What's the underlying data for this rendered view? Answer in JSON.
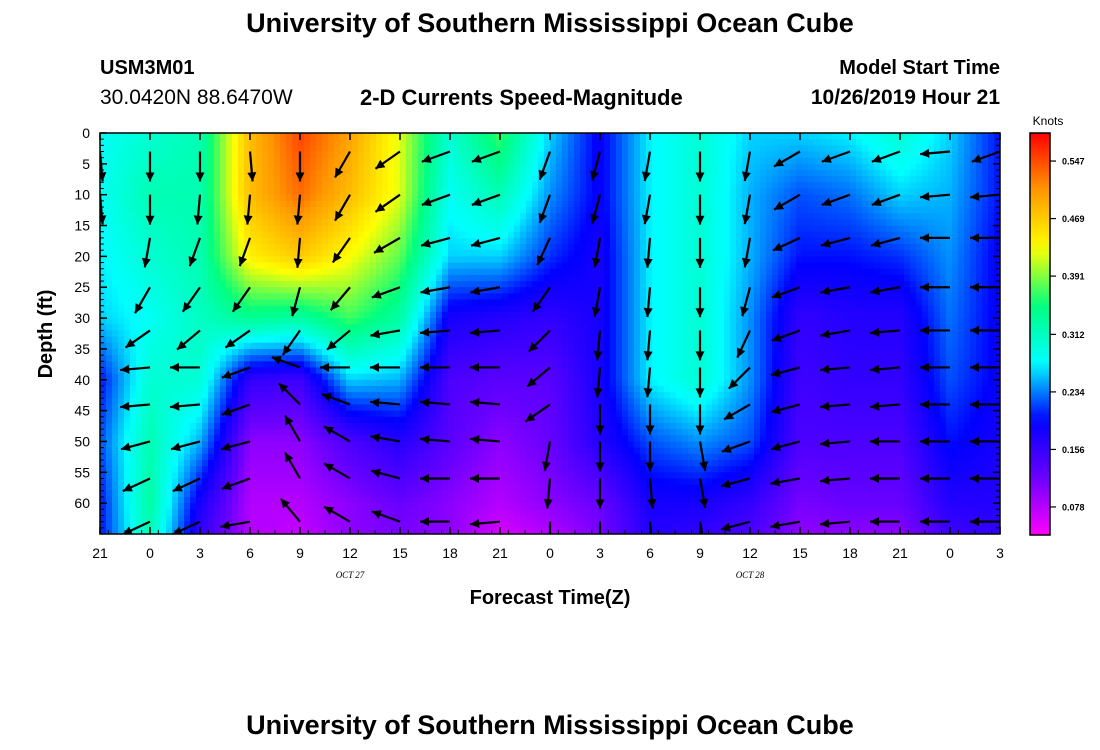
{
  "header": {
    "title": "University of Southern Mississippi Ocean Cube",
    "station_id": "USM3M01",
    "location": "30.0420N 88.6470W",
    "plot_title": "2-D Currents Speed-Magnitude",
    "model_start_label": "Model Start Time",
    "model_start_value": "10/26/2019 Hour 21"
  },
  "footer": {
    "title": "University of Southern Mississippi Ocean Cube"
  },
  "colors": {
    "colormap": [
      "#ff00ff",
      "#6a00ff",
      "#0000ff",
      "#00ffff",
      "#00ff7f",
      "#ffff00",
      "#ff9900",
      "#ff0000"
    ]
  },
  "chart_data": {
    "type": "heatmap",
    "xlabel": "Forecast Time(Z)",
    "ylabel": "Depth (ft)",
    "xlim": [
      0,
      54
    ],
    "ylim": [
      0,
      65
    ],
    "x_ticks": [
      0,
      3,
      6,
      9,
      12,
      15,
      18,
      21,
      24,
      27,
      30,
      33,
      36,
      39,
      42,
      45,
      48,
      51,
      54
    ],
    "x_tick_labels": [
      "21",
      "0",
      "3",
      "6",
      "9",
      "12",
      "15",
      "18",
      "21",
      "0",
      "3",
      "6",
      "9",
      "12",
      "15",
      "18",
      "21",
      "0",
      "3"
    ],
    "date_labels": [
      {
        "x": 15,
        "text": "OCT 27"
      },
      {
        "x": 39,
        "text": "OCT 28"
      }
    ],
    "y_ticks": [
      0,
      5,
      10,
      15,
      20,
      25,
      30,
      35,
      40,
      45,
      50,
      55,
      60
    ],
    "y_tick_labels": [
      "0",
      "5",
      "10",
      "15",
      "20",
      "25",
      "30",
      "35",
      "40",
      "45",
      "50",
      "55",
      "60"
    ],
    "colorbar": {
      "label": "Knots",
      "ticks": [
        0.547,
        0.469,
        0.391,
        0.312,
        0.234,
        0.156,
        0.078
      ],
      "tick_labels": [
        "0.547",
        "0.469",
        "0.391",
        "0.312",
        "0.234",
        "0.156",
        "0.078"
      ],
      "range": [
        0.04,
        0.585
      ]
    },
    "speed_columns_x": [
      0,
      3,
      6,
      9,
      12,
      15,
      18,
      21,
      24,
      27,
      30,
      33,
      36,
      39,
      42,
      45,
      48,
      51,
      54
    ],
    "speed_rows_depth": [
      0,
      10,
      20,
      30,
      40,
      50,
      60,
      65
    ],
    "speed": [
      [
        0.28,
        0.28,
        0.27,
        0.26,
        0.2,
        0.22,
        0.2,
        0.2
      ],
      [
        0.3,
        0.32,
        0.3,
        0.28,
        0.3,
        0.32,
        0.33,
        0.32
      ],
      [
        0.32,
        0.32,
        0.32,
        0.31,
        0.3,
        0.25,
        0.18,
        0.16
      ],
      [
        0.48,
        0.48,
        0.44,
        0.34,
        0.16,
        0.1,
        0.08,
        0.08
      ],
      [
        0.55,
        0.53,
        0.47,
        0.33,
        0.15,
        0.1,
        0.08,
        0.07
      ],
      [
        0.5,
        0.48,
        0.43,
        0.37,
        0.26,
        0.14,
        0.1,
        0.1
      ],
      [
        0.42,
        0.42,
        0.38,
        0.33,
        0.25,
        0.17,
        0.12,
        0.11
      ],
      [
        0.3,
        0.28,
        0.26,
        0.18,
        0.14,
        0.13,
        0.1,
        0.1
      ],
      [
        0.37,
        0.32,
        0.26,
        0.17,
        0.13,
        0.1,
        0.08,
        0.06
      ],
      [
        0.26,
        0.24,
        0.21,
        0.16,
        0.13,
        0.12,
        0.1,
        0.08
      ],
      [
        0.19,
        0.19,
        0.18,
        0.18,
        0.18,
        0.17,
        0.12,
        0.11
      ],
      [
        0.27,
        0.27,
        0.27,
        0.27,
        0.27,
        0.22,
        0.18,
        0.17
      ],
      [
        0.3,
        0.3,
        0.3,
        0.3,
        0.3,
        0.24,
        0.18,
        0.16
      ],
      [
        0.26,
        0.25,
        0.25,
        0.24,
        0.24,
        0.22,
        0.16,
        0.14
      ],
      [
        0.26,
        0.22,
        0.2,
        0.16,
        0.15,
        0.14,
        0.11,
        0.1
      ],
      [
        0.27,
        0.23,
        0.2,
        0.17,
        0.16,
        0.14,
        0.12,
        0.1
      ],
      [
        0.3,
        0.26,
        0.21,
        0.17,
        0.16,
        0.14,
        0.12,
        0.1
      ],
      [
        0.26,
        0.25,
        0.24,
        0.23,
        0.22,
        0.2,
        0.17,
        0.15
      ],
      [
        0.2,
        0.2,
        0.19,
        0.19,
        0.19,
        0.18,
        0.17,
        0.16
      ]
    ],
    "vector_columns_x": [
      0,
      3,
      6,
      9,
      12,
      15,
      18,
      21,
      24,
      27,
      30,
      33,
      36,
      39,
      42,
      45,
      48,
      51,
      54
    ],
    "vector_rows_depth": [
      3,
      10,
      17,
      25,
      32,
      38,
      44,
      50,
      56,
      63
    ],
    "vector_direction_deg": [
      [
        175,
        175,
        195,
        225,
        240,
        230,
        235,
        245,
        270,
        285
      ],
      [
        180,
        180,
        190,
        210,
        235,
        265,
        265,
        255,
        245,
        245
      ],
      [
        180,
        185,
        200,
        215,
        230,
        270,
        265,
        255,
        245,
        245
      ],
      [
        175,
        185,
        200,
        215,
        235,
        250,
        250,
        255,
        250,
        260
      ],
      [
        180,
        185,
        185,
        195,
        215,
        290,
        315,
        330,
        330,
        320
      ],
      [
        210,
        210,
        215,
        220,
        230,
        270,
        290,
        300,
        300,
        300
      ],
      [
        235,
        235,
        240,
        250,
        260,
        270,
        275,
        280,
        285,
        290
      ],
      [
        250,
        250,
        255,
        260,
        265,
        270,
        275,
        275,
        270,
        270
      ],
      [
        250,
        250,
        255,
        260,
        265,
        270,
        275,
        275,
        270,
        265
      ],
      [
        200,
        200,
        205,
        215,
        225,
        230,
        235,
        190,
        185,
        180
      ],
      [
        195,
        195,
        190,
        190,
        185,
        185,
        180,
        180,
        180,
        180
      ],
      [
        190,
        190,
        185,
        185,
        185,
        185,
        180,
        180,
        175,
        175
      ],
      [
        180,
        180,
        180,
        180,
        180,
        180,
        180,
        170,
        170,
        170
      ],
      [
        190,
        190,
        190,
        195,
        205,
        225,
        240,
        250,
        255,
        255
      ],
      [
        240,
        240,
        245,
        250,
        250,
        255,
        255,
        255,
        260,
        260
      ],
      [
        250,
        250,
        255,
        260,
        260,
        265,
        265,
        265,
        265,
        265
      ],
      [
        250,
        250,
        255,
        260,
        265,
        265,
        265,
        270,
        270,
        270
      ],
      [
        265,
        265,
        270,
        270,
        270,
        270,
        270,
        270,
        270,
        270
      ],
      [
        250,
        265,
        270,
        270,
        270,
        270,
        270,
        270,
        270,
        270
      ]
    ]
  }
}
